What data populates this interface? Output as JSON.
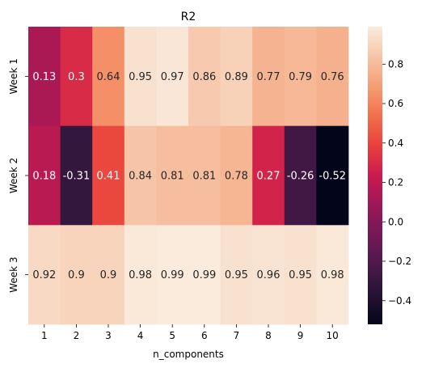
{
  "chart_data": {
    "type": "heatmap",
    "title": "R2",
    "xlabel": "n_components",
    "ylabel": "",
    "x_categories": [
      "1",
      "2",
      "3",
      "4",
      "5",
      "6",
      "7",
      "8",
      "9",
      "10"
    ],
    "y_categories": [
      "Week 1",
      "Week 2",
      "Week 3"
    ],
    "values": [
      [
        0.13,
        0.3,
        0.64,
        0.95,
        0.97,
        0.86,
        0.89,
        0.77,
        0.79,
        0.76
      ],
      [
        0.18,
        -0.31,
        0.41,
        0.84,
        0.81,
        0.81,
        0.78,
        0.27,
        -0.26,
        -0.52
      ],
      [
        0.92,
        0.9,
        0.9,
        0.98,
        0.99,
        0.99,
        0.95,
        0.96,
        0.95,
        0.98
      ]
    ],
    "value_labels": [
      [
        "0.13",
        "0.3",
        "0.64",
        "0.95",
        "0.97",
        "0.86",
        "0.89",
        "0.77",
        "0.79",
        "0.76"
      ],
      [
        "0.18",
        "-0.31",
        "0.41",
        "0.84",
        "0.81",
        "0.81",
        "0.78",
        "0.27",
        "-0.26",
        "-0.52"
      ],
      [
        "0.92",
        "0.9",
        "0.9",
        "0.98",
        "0.99",
        "0.99",
        "0.95",
        "0.96",
        "0.95",
        "0.98"
      ]
    ],
    "colormap": "rocket",
    "vmin": -0.52,
    "vmax": 0.99,
    "colorbar_ticks": [
      0.8,
      0.6,
      0.4,
      0.2,
      0.0,
      -0.2,
      -0.4
    ],
    "colorbar_tick_labels": [
      "0.8",
      "0.6",
      "0.4",
      "0.2",
      "0.0",
      "−0.2",
      "−0.4"
    ],
    "grid": false,
    "legend": "colorbar-right"
  }
}
